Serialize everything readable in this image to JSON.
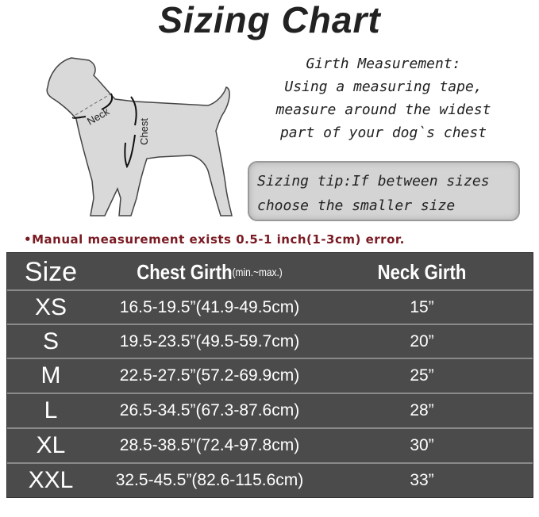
{
  "title": "Sizing Chart",
  "diagram": {
    "neck_label": "Neck",
    "chest_label": "Chest"
  },
  "girth_measurement": {
    "heading": "Girth Measurement:",
    "lines": [
      "Using a measuring tape,",
      "measure around the widest",
      "part of your dog`s chest"
    ]
  },
  "sizing_tip": {
    "line1": "Sizing tip:If between sizes",
    "line2": "choose the smaller size"
  },
  "warning": "•Manual measurement exists 0.5-1 inch(1-3cm) error.",
  "colors": {
    "table_bg": "#4b4b4b",
    "warning_text": "#7a1a22",
    "tip_bg": "#d4d4d4"
  },
  "table": {
    "headers": {
      "size": "Size",
      "chest": "Chest Girth",
      "chest_note": "(min.~max.)",
      "neck": "Neck Girth"
    },
    "rows": [
      {
        "size": "XS",
        "chest": "16.5-19.5”(41.9-49.5cm)",
        "neck": "15”"
      },
      {
        "size": "S",
        "chest": "19.5-23.5”(49.5-59.7cm)",
        "neck": "20”"
      },
      {
        "size": "M",
        "chest": "22.5-27.5”(57.2-69.9cm)",
        "neck": "25”"
      },
      {
        "size": "L",
        "chest": "26.5-34.5”(67.3-87.6cm)",
        "neck": "28”"
      },
      {
        "size": "XL",
        "chest": "28.5-38.5”(72.4-97.8cm)",
        "neck": "30”"
      },
      {
        "size": "XXL",
        "chest": "32.5-45.5”(82.6-115.6cm)",
        "neck": "33”"
      }
    ]
  }
}
